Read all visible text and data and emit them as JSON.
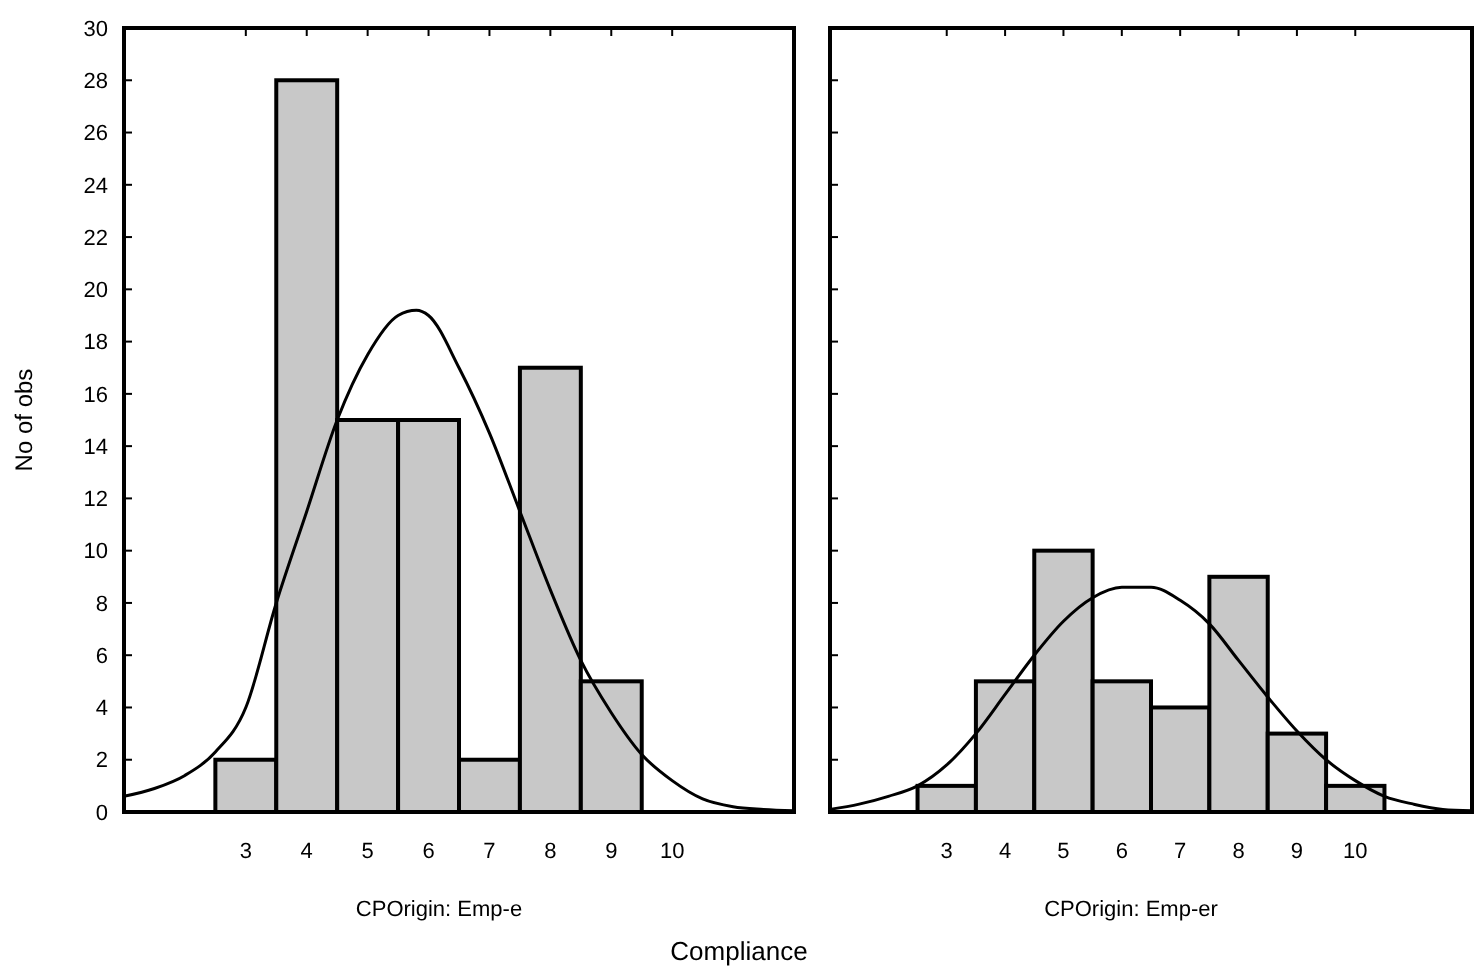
{
  "chart_data": [
    {
      "type": "histogram",
      "xlabel": "CPOrigin: Emp-e",
      "ylabel": "No of obs",
      "annotations": [
        "Compliance"
      ],
      "bins": [
        2.5,
        3.5,
        4.5,
        5.5,
        6.5,
        7.5,
        8.5,
        9.5
      ],
      "xlim": [
        1,
        12
      ],
      "xticks": [
        3,
        4,
        5,
        6,
        7,
        8,
        9,
        10
      ],
      "ylim": [
        0,
        30
      ],
      "yticks": [
        0,
        2,
        4,
        6,
        8,
        10,
        12,
        14,
        16,
        18,
        20,
        22,
        24,
        26,
        28,
        30
      ],
      "grid": false,
      "series": [
        {
          "color": "#c8c8c8",
          "values": [
            2,
            28,
            15,
            15,
            2,
            17,
            5
          ]
        },
        {
          "type": "line",
          "color": "#000000",
          "x": [
            1,
            1.5,
            2,
            2.5,
            3,
            3.5,
            4,
            4.5,
            5,
            5.5,
            5.8,
            6,
            6.5,
            7,
            7.5,
            8,
            8.5,
            9,
            9.5,
            10,
            10.5,
            11,
            11.5,
            12
          ],
          "values": [
            0.6,
            0.9,
            1.4,
            2.3,
            4,
            8,
            11.5,
            15,
            17.5,
            19,
            19.2,
            19,
            17,
            14.5,
            11.5,
            8.5,
            5.8,
            3.8,
            2.2,
            1.2,
            0.5,
            0.2,
            0.1,
            0.05
          ]
        }
      ]
    },
    {
      "type": "histogram",
      "xlabel": "CPOrigin: Emp-er",
      "bins": [
        2.5,
        3.5,
        4.5,
        5.5,
        6.5,
        7.5,
        8.5,
        9.5,
        10.5
      ],
      "xlim": [
        1,
        12
      ],
      "xticks": [
        3,
        4,
        5,
        6,
        7,
        8,
        9,
        10
      ],
      "ylim": [
        0,
        30
      ],
      "yticks": [
        0,
        2,
        4,
        6,
        8,
        10,
        12,
        14,
        16,
        18,
        20,
        22,
        24,
        26,
        28,
        30
      ],
      "tick_labels": "x",
      "grid": false,
      "series": [
        {
          "color": "#c8c8c8",
          "values": [
            1,
            5,
            10,
            5,
            4,
            9,
            3,
            1
          ]
        },
        {
          "type": "line",
          "color": "#000000",
          "x": [
            1,
            1.5,
            2,
            2.5,
            3,
            3.5,
            4,
            4.5,
            5,
            5.5,
            6,
            6.5,
            7,
            7.5,
            8,
            8.5,
            9,
            9.5,
            10,
            10.5,
            11,
            11.5,
            12
          ],
          "values": [
            0.1,
            0.3,
            0.6,
            1,
            1.8,
            3,
            4.5,
            6,
            7.3,
            8.2,
            8.6,
            8.6,
            8.1,
            7.2,
            5.8,
            4.4,
            3.1,
            2,
            1.2,
            0.6,
            0.3,
            0.1,
            0.05
          ]
        }
      ]
    }
  ]
}
